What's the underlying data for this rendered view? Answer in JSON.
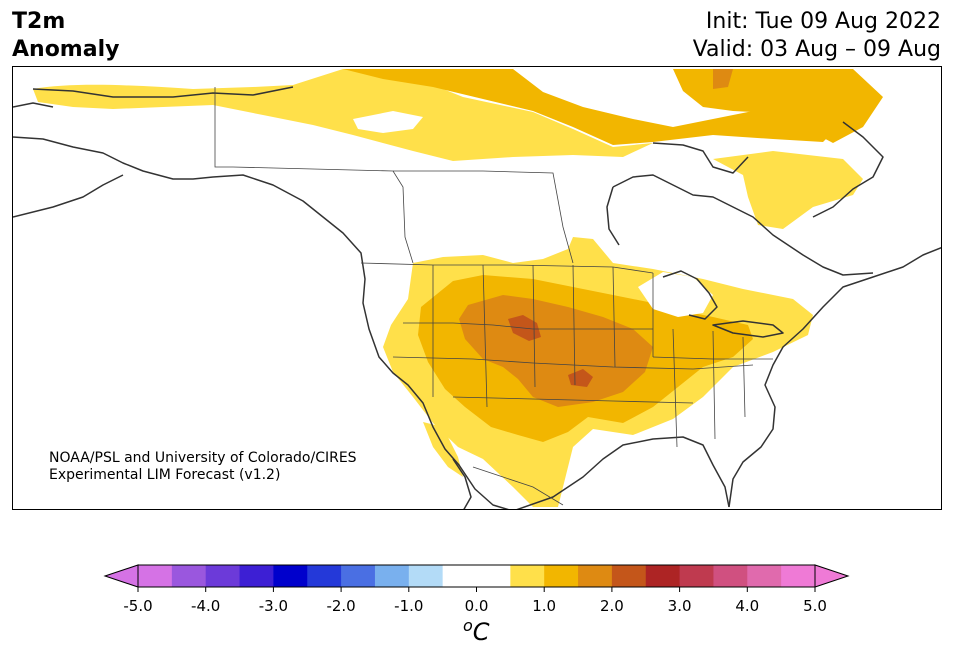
{
  "title": {
    "variable_line1": "T2m",
    "variable_line2": "Anomaly",
    "init": "Init: Tue 09 Aug 2022",
    "valid": "Valid: 03 Aug – 09 Aug"
  },
  "credit": {
    "line1": "NOAA/PSL and University of Colorado/CIRES",
    "line2": "Experimental LIM Forecast (v1.2)"
  },
  "colorbar": {
    "ticks": [
      "-5.0",
      "-4.0",
      "-3.0",
      "-2.0",
      "-1.0",
      "0.0",
      "1.0",
      "2.0",
      "3.0",
      "4.0",
      "5.0"
    ],
    "unit_symbol": "o",
    "unit_letter": "C",
    "colors": [
      "#d572e5",
      "#9a57de",
      "#6c3ad9",
      "#3d1fd4",
      "#0000cc",
      "#2439d9",
      "#4a6fe3",
      "#79b0ee",
      "#b3dbf7",
      "#ffffff",
      "#ffffff",
      "#ffe04a",
      "#f2b600",
      "#de8a12",
      "#c4561a",
      "#ad2424",
      "#bf3a4f",
      "#d05080",
      "#e06aad",
      "#ef7ad6"
    ],
    "under_color": "#d572e5",
    "over_color": "#ef7ad6"
  },
  "map_colors": {
    "land_outline": "#333333",
    "level_1": "#ffe04a",
    "level_2": "#f2b600",
    "level_3": "#de8a12",
    "level_4": "#c4561a"
  }
}
